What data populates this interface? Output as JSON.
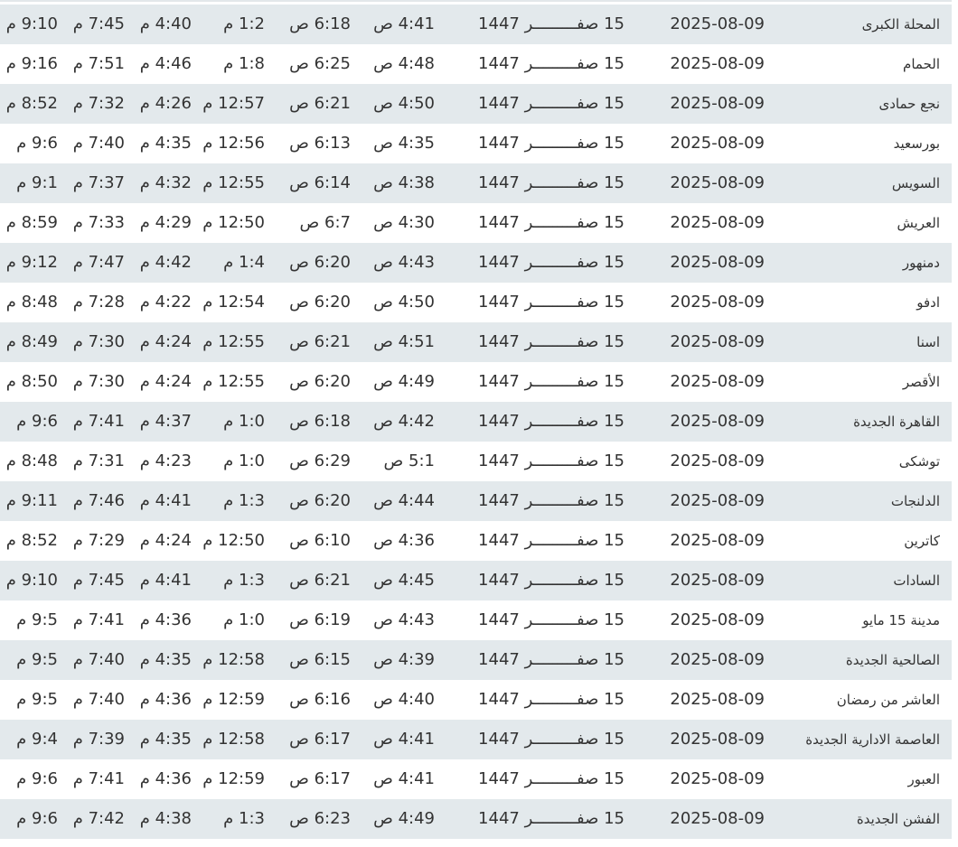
{
  "colors": {
    "row_shaded": "#e3e9ec",
    "row_plain": "#ffffff",
    "text": "#333333"
  },
  "rows": [
    {
      "city": "المحلة الكبرى",
      "date": "2025-08-09",
      "hijri": "15 صفـــــــــر 1447",
      "fajr": "4:41 ص",
      "sunrise": "6:18 ص",
      "dhuhr": "1:2 م",
      "asr": "4:40 م",
      "maghrib": "7:45 م",
      "isha": "9:10 م"
    },
    {
      "city": "الحمام",
      "date": "2025-08-09",
      "hijri": "15 صفـــــــــر 1447",
      "fajr": "4:48 ص",
      "sunrise": "6:25 ص",
      "dhuhr": "1:8 م",
      "asr": "4:46 م",
      "maghrib": "7:51 م",
      "isha": "9:16 م"
    },
    {
      "city": "نجع حمادى",
      "date": "2025-08-09",
      "hijri": "15 صفـــــــــر 1447",
      "fajr": "4:50 ص",
      "sunrise": "6:21 ص",
      "dhuhr": "12:57 م",
      "asr": "4:26 م",
      "maghrib": "7:32 م",
      "isha": "8:52 م"
    },
    {
      "city": "بورسعيد",
      "date": "2025-08-09",
      "hijri": "15 صفـــــــــر 1447",
      "fajr": "4:35 ص",
      "sunrise": "6:13 ص",
      "dhuhr": "12:56 م",
      "asr": "4:35 م",
      "maghrib": "7:40 م",
      "isha": "9:6 م"
    },
    {
      "city": "السويس",
      "date": "2025-08-09",
      "hijri": "15 صفـــــــــر 1447",
      "fajr": "4:38 ص",
      "sunrise": "6:14 ص",
      "dhuhr": "12:55 م",
      "asr": "4:32 م",
      "maghrib": "7:37 م",
      "isha": "9:1 م"
    },
    {
      "city": "العريش",
      "date": "2025-08-09",
      "hijri": "15 صفـــــــــر 1447",
      "fajr": "4:30 ص",
      "sunrise": "6:7 ص",
      "dhuhr": "12:50 م",
      "asr": "4:29 م",
      "maghrib": "7:33 م",
      "isha": "8:59 م"
    },
    {
      "city": "دمنهور",
      "date": "2025-08-09",
      "hijri": "15 صفـــــــــر 1447",
      "fajr": "4:43 ص",
      "sunrise": "6:20 ص",
      "dhuhr": "1:4 م",
      "asr": "4:42 م",
      "maghrib": "7:47 م",
      "isha": "9:12 م"
    },
    {
      "city": "ادفو",
      "date": "2025-08-09",
      "hijri": "15 صفـــــــــر 1447",
      "fajr": "4:50 ص",
      "sunrise": "6:20 ص",
      "dhuhr": "12:54 م",
      "asr": "4:22 م",
      "maghrib": "7:28 م",
      "isha": "8:48 م"
    },
    {
      "city": "اسنا",
      "date": "2025-08-09",
      "hijri": "15 صفـــــــــر 1447",
      "fajr": "4:51 ص",
      "sunrise": "6:21 ص",
      "dhuhr": "12:55 م",
      "asr": "4:24 م",
      "maghrib": "7:30 م",
      "isha": "8:49 م"
    },
    {
      "city": "الأقصر",
      "date": "2025-08-09",
      "hijri": "15 صفـــــــــر 1447",
      "fajr": "4:49 ص",
      "sunrise": "6:20 ص",
      "dhuhr": "12:55 م",
      "asr": "4:24 م",
      "maghrib": "7:30 م",
      "isha": "8:50 م"
    },
    {
      "city": "القاهرة الجديدة",
      "date": "2025-08-09",
      "hijri": "15 صفـــــــــر 1447",
      "fajr": "4:42 ص",
      "sunrise": "6:18 ص",
      "dhuhr": "1:0 م",
      "asr": "4:37 م",
      "maghrib": "7:41 م",
      "isha": "9:6 م"
    },
    {
      "city": "توشكى",
      "date": "2025-08-09",
      "hijri": "15 صفـــــــــر 1447",
      "fajr": "5:1 ص",
      "sunrise": "6:29 ص",
      "dhuhr": "1:0 م",
      "asr": "4:23 م",
      "maghrib": "7:31 م",
      "isha": "8:48 م"
    },
    {
      "city": "الدلنجات",
      "date": "2025-08-09",
      "hijri": "15 صفـــــــــر 1447",
      "fajr": "4:44 ص",
      "sunrise": "6:20 ص",
      "dhuhr": "1:3 م",
      "asr": "4:41 م",
      "maghrib": "7:46 م",
      "isha": "9:11 م"
    },
    {
      "city": "كاترين",
      "date": "2025-08-09",
      "hijri": "15 صفـــــــــر 1447",
      "fajr": "4:36 ص",
      "sunrise": "6:10 ص",
      "dhuhr": "12:50 م",
      "asr": "4:24 م",
      "maghrib": "7:29 م",
      "isha": "8:52 م"
    },
    {
      "city": "السادات",
      "date": "2025-08-09",
      "hijri": "15 صفـــــــــر 1447",
      "fajr": "4:45 ص",
      "sunrise": "6:21 ص",
      "dhuhr": "1:3 م",
      "asr": "4:41 م",
      "maghrib": "7:45 م",
      "isha": "9:10 م"
    },
    {
      "city": "مدينة 15 مايو",
      "date": "2025-08-09",
      "hijri": "15 صفـــــــــر 1447",
      "fajr": "4:43 ص",
      "sunrise": "6:19 ص",
      "dhuhr": "1:0 م",
      "asr": "4:36 م",
      "maghrib": "7:41 م",
      "isha": "9:5 م"
    },
    {
      "city": "الصالحية الجديدة",
      "date": "2025-08-09",
      "hijri": "15 صفـــــــــر 1447",
      "fajr": "4:39 ص",
      "sunrise": "6:15 ص",
      "dhuhr": "12:58 م",
      "asr": "4:35 م",
      "maghrib": "7:40 م",
      "isha": "9:5 م"
    },
    {
      "city": "العاشر من رمضان",
      "date": "2025-08-09",
      "hijri": "15 صفـــــــــر 1447",
      "fajr": "4:40 ص",
      "sunrise": "6:16 ص",
      "dhuhr": "12:59 م",
      "asr": "4:36 م",
      "maghrib": "7:40 م",
      "isha": "9:5 م"
    },
    {
      "city": "العاصمة الادارية الجديدة",
      "date": "2025-08-09",
      "hijri": "15 صفـــــــــر 1447",
      "fajr": "4:41 ص",
      "sunrise": "6:17 ص",
      "dhuhr": "12:58 م",
      "asr": "4:35 م",
      "maghrib": "7:39 م",
      "isha": "9:4 م"
    },
    {
      "city": "العبور",
      "date": "2025-08-09",
      "hijri": "15 صفـــــــــر 1447",
      "fajr": "4:41 ص",
      "sunrise": "6:17 ص",
      "dhuhr": "12:59 م",
      "asr": "4:36 م",
      "maghrib": "7:41 م",
      "isha": "9:6 م"
    },
    {
      "city": "الفشن الجديدة",
      "date": "2025-08-09",
      "hijri": "15 صفـــــــــر 1447",
      "fajr": "4:49 ص",
      "sunrise": "6:23 ص",
      "dhuhr": "1:3 م",
      "asr": "4:38 م",
      "maghrib": "7:42 م",
      "isha": "9:6 م"
    }
  ]
}
